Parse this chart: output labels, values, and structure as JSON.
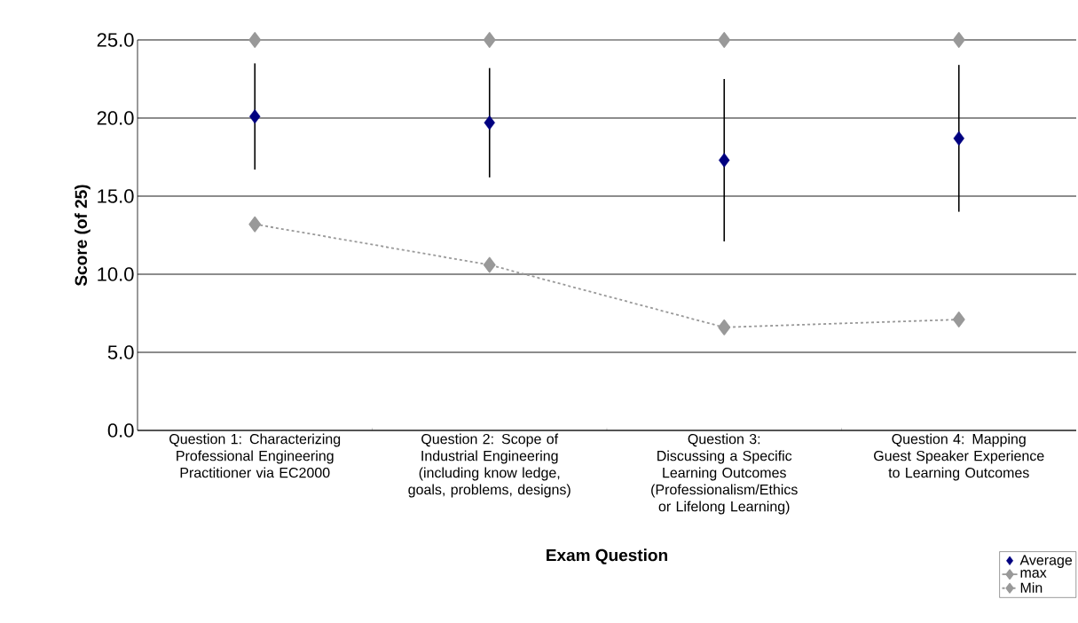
{
  "chart_data": {
    "type": "line",
    "xlabel": "Exam Question",
    "ylabel": "Score (of 25)",
    "categories": [
      "Question 1: Characterizing Professional Engineering Practitioner via EC2000",
      "Question 2: Scope of Industrial Engineering (including know ledge, goals, problems, designs)",
      "Question 3: Discussing a Specific Learning Outcomes (Professionalism/Ethics or Lifelong Learning)",
      "Question 4: Mapping Guest Speaker Experience to Learning Outcomes"
    ],
    "ylim": [
      0,
      25
    ],
    "yticks": [
      {
        "value": 0,
        "label": "0.0"
      },
      {
        "value": 5,
        "label": "5.0"
      },
      {
        "value": 10,
        "label": "10.0"
      },
      {
        "value": 15,
        "label": "15.0"
      },
      {
        "value": 20,
        "label": "20.0"
      },
      {
        "value": 25,
        "label": "25.0"
      }
    ],
    "grid": "y",
    "legend": "bottom right",
    "marker": "diamond",
    "series": [
      {
        "name": "Average",
        "type": "scatter",
        "color": "#000080",
        "values": [
          20.1,
          19.7,
          17.3,
          18.7
        ],
        "errors": [
          3.4,
          3.5,
          5.2,
          4.7
        ]
      },
      {
        "name": "max",
        "color": "#999999",
        "line_style": "solid",
        "values": [
          25,
          25,
          25,
          25
        ]
      },
      {
        "name": "Min",
        "color": "#999999",
        "line_style": "dotted",
        "values": [
          13.2,
          10.6,
          6.6,
          7.1
        ]
      }
    ]
  }
}
